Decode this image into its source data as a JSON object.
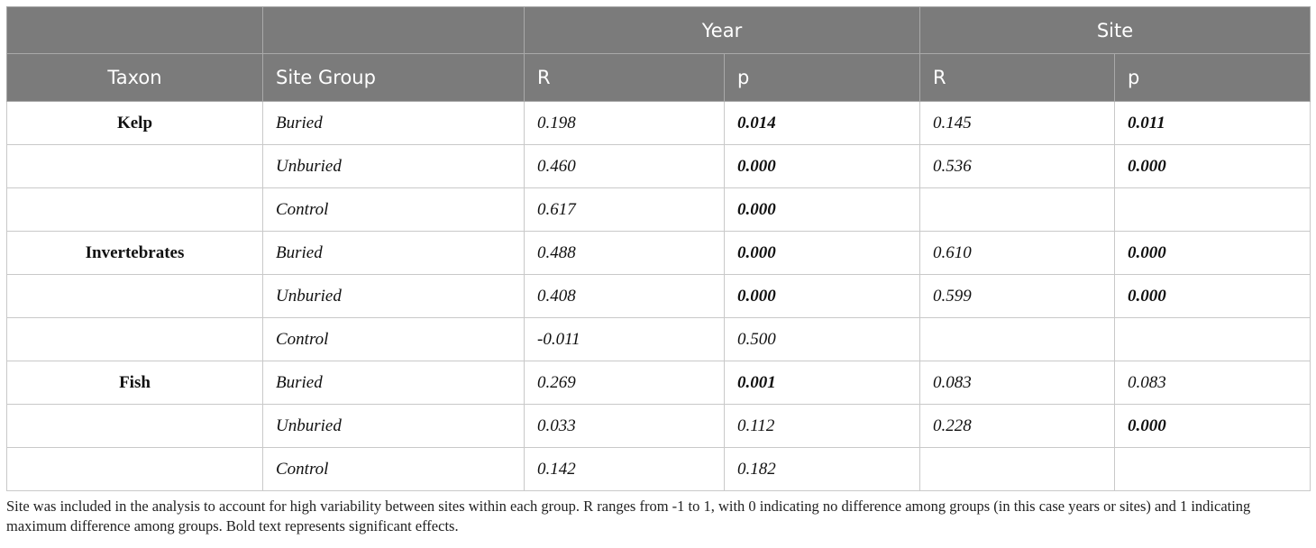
{
  "header": {
    "group_year": "Year",
    "group_site": "Site",
    "col_taxon": "Taxon",
    "col_site_group": "Site Group",
    "col_year_r": "R",
    "col_year_p": "p",
    "col_site_r": "R",
    "col_site_p": "p"
  },
  "rows": [
    {
      "taxon": "Kelp",
      "group": "Buried",
      "year_r": "0.198",
      "year_p": "0.014",
      "site_r": "0.145",
      "site_p": "0.011"
    },
    {
      "taxon": "",
      "group": "Unburied",
      "year_r": "0.460",
      "year_p": "0.000",
      "site_r": "0.536",
      "site_p": "0.000"
    },
    {
      "taxon": "",
      "group": "Control",
      "year_r": "0.617",
      "year_p": "0.000",
      "site_r": "",
      "site_p": ""
    },
    {
      "taxon": "Invertebrates",
      "group": "Buried",
      "year_r": "0.488",
      "year_p": "0.000",
      "site_r": "0.610",
      "site_p": "0.000"
    },
    {
      "taxon": "",
      "group": "Unburied",
      "year_r": "0.408",
      "year_p": "0.000",
      "site_r": "0.599",
      "site_p": "0.000"
    },
    {
      "taxon": "",
      "group": "Control",
      "year_r": "-0.011",
      "year_p": "0.500",
      "site_r": "",
      "site_p": ""
    },
    {
      "taxon": "Fish",
      "group": "Buried",
      "year_r": "0.269",
      "year_p": "0.001",
      "site_r": "0.083",
      "site_p": "0.083"
    },
    {
      "taxon": "",
      "group": "Unburied",
      "year_r": "0.033",
      "year_p": "0.112",
      "site_r": "0.228",
      "site_p": "0.000"
    },
    {
      "taxon": "",
      "group": "Control",
      "year_r": "0.142",
      "year_p": "0.182",
      "site_r": "",
      "site_p": ""
    }
  ],
  "footnote": "Site was included in the analysis to account for high variability between sites within each group. R ranges from -1 to 1, with 0 indicating no difference among groups (in this case years or sites) and 1 indicating maximum difference among groups. Bold text represents significant effects."
}
